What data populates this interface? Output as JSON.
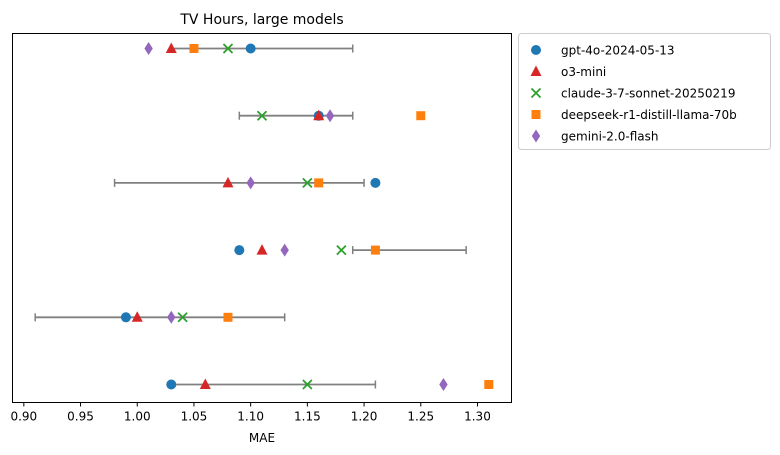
{
  "chart_data": {
    "type": "scatter",
    "title": "TV Hours, large models",
    "xlabel": "MAE",
    "ylabel": "",
    "xlim": [
      0.89,
      1.33
    ],
    "xticks": [
      "0.90",
      "0.95",
      "1.00",
      "1.05",
      "1.10",
      "1.15",
      "1.20",
      "1.25",
      "1.30"
    ],
    "grid": false,
    "legend_position": "outside-top-right",
    "rows": 6,
    "series": [
      {
        "name": "gpt-4o-2024-05-13",
        "marker": "circle",
        "color": "#1f77b4",
        "values": [
          1.1,
          1.16,
          1.21,
          1.09,
          0.99,
          1.03
        ]
      },
      {
        "name": "o3-mini",
        "marker": "triangle",
        "color": "#d62728",
        "values": [
          1.03,
          1.16,
          1.08,
          1.11,
          1.0,
          1.06
        ]
      },
      {
        "name": "claude-3-7-sonnet-20250219",
        "marker": "x",
        "color": "#2ca02c",
        "values": [
          1.08,
          1.11,
          1.15,
          1.18,
          1.04,
          1.15
        ]
      },
      {
        "name": "deepseek-r1-distill-llama-70b",
        "marker": "square",
        "color": "#ff7f0e",
        "values": [
          1.05,
          1.25,
          1.16,
          1.21,
          1.08,
          1.31
        ]
      },
      {
        "name": "gemini-2.0-flash",
        "marker": "diamond",
        "color": "#9467bd",
        "values": [
          1.01,
          1.17,
          1.1,
          1.13,
          1.03,
          1.27
        ]
      }
    ],
    "intervals": [
      {
        "low": 1.03,
        "high": 1.19
      },
      {
        "low": 1.09,
        "high": 1.19
      },
      {
        "low": 0.98,
        "high": 1.2
      },
      {
        "low": 1.19,
        "high": 1.29
      },
      {
        "low": 0.91,
        "high": 1.13
      },
      {
        "low": 1.03,
        "high": 1.21
      }
    ],
    "interval_color": "#808080"
  }
}
